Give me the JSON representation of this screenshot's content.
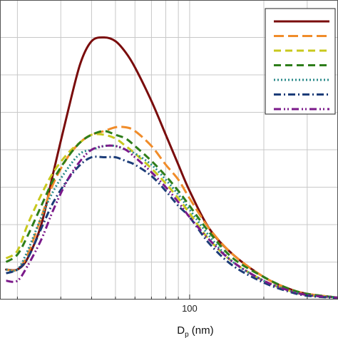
{
  "chart_data": {
    "type": "line",
    "xlabel": "D",
    "xlabel_subscript": "p",
    "xlabel_unit": " (nm)",
    "xscale": "log",
    "xlim": [
      17,
      400
    ],
    "ylim": [
      0,
      8
    ],
    "grid": true,
    "legend_position": "top-right",
    "x_tick_labels": [
      {
        "value": 100,
        "label": "100"
      }
    ],
    "series": [
      {
        "color": "#7a0c0c",
        "dash": "solid",
        "x": [
          18,
          20,
          22,
          25,
          28,
          32,
          36,
          40,
          45,
          50,
          55,
          60,
          70,
          80,
          90,
          100,
          120,
          150,
          200,
          250,
          300,
          400
        ],
        "y": [
          0.8,
          0.8,
          1.1,
          2.0,
          3.4,
          5.0,
          6.3,
          6.9,
          7.0,
          6.9,
          6.6,
          6.2,
          5.3,
          4.4,
          3.6,
          2.9,
          1.9,
          1.2,
          0.6,
          0.3,
          0.15,
          0.05
        ]
      },
      {
        "color": "#f08c2a",
        "dash": "long-dash",
        "x": [
          18,
          20,
          22,
          25,
          28,
          32,
          36,
          40,
          45,
          50,
          55,
          60,
          70,
          80,
          90,
          100,
          120,
          150,
          200,
          250,
          300,
          400
        ],
        "y": [
          0.8,
          0.8,
          1.2,
          2.2,
          3.1,
          3.8,
          4.2,
          4.4,
          4.5,
          4.6,
          4.6,
          4.5,
          4.1,
          3.6,
          3.2,
          2.7,
          1.9,
          1.2,
          0.6,
          0.3,
          0.15,
          0.05
        ]
      },
      {
        "color": "#c8c81e",
        "dash": "dash",
        "x": [
          18,
          20,
          22,
          25,
          28,
          32,
          36,
          40,
          45,
          50,
          55,
          60,
          70,
          80,
          90,
          100,
          120,
          150,
          200,
          250,
          300,
          400
        ],
        "y": [
          1.1,
          1.3,
          2.0,
          2.8,
          3.4,
          3.9,
          4.2,
          4.4,
          4.4,
          4.3,
          4.1,
          3.9,
          3.5,
          3.1,
          2.7,
          2.3,
          1.6,
          1.0,
          0.5,
          0.25,
          0.12,
          0.05
        ]
      },
      {
        "color": "#2e7d1a",
        "dash": "dash",
        "x": [
          18,
          20,
          22,
          25,
          28,
          32,
          36,
          40,
          45,
          50,
          55,
          60,
          70,
          80,
          90,
          100,
          120,
          150,
          200,
          250,
          300,
          400
        ],
        "y": [
          1.0,
          1.2,
          1.7,
          2.5,
          3.2,
          3.8,
          4.2,
          4.4,
          4.5,
          4.4,
          4.3,
          4.1,
          3.7,
          3.3,
          2.9,
          2.5,
          1.8,
          1.1,
          0.6,
          0.3,
          0.15,
          0.05
        ]
      },
      {
        "color": "#2a8a8a",
        "dash": "dot",
        "x": [
          18,
          20,
          22,
          25,
          28,
          32,
          36,
          40,
          45,
          50,
          55,
          60,
          70,
          80,
          90,
          100,
          120,
          150,
          200,
          250,
          300,
          400
        ],
        "y": [
          0.8,
          0.8,
          1.3,
          2.2,
          2.9,
          3.5,
          3.9,
          4.0,
          4.1,
          4.1,
          4.0,
          3.9,
          3.6,
          3.2,
          2.8,
          2.4,
          1.7,
          1.0,
          0.5,
          0.25,
          0.12,
          0.05
        ]
      },
      {
        "color": "#1c3c78",
        "dash": "dash-dot",
        "x": [
          18,
          20,
          22,
          25,
          28,
          32,
          36,
          40,
          45,
          50,
          55,
          60,
          70,
          80,
          90,
          100,
          120,
          150,
          200,
          250,
          300,
          400
        ],
        "y": [
          0.7,
          0.8,
          1.1,
          1.9,
          2.6,
          3.2,
          3.6,
          3.8,
          3.8,
          3.8,
          3.7,
          3.6,
          3.3,
          2.9,
          2.5,
          2.2,
          1.5,
          0.9,
          0.45,
          0.22,
          0.1,
          0.04
        ]
      },
      {
        "color": "#7b1a8a",
        "dash": "dash-dot-dot",
        "x": [
          18,
          20,
          22,
          25,
          28,
          32,
          36,
          40,
          45,
          50,
          55,
          60,
          70,
          80,
          90,
          100,
          120,
          150,
          200,
          250,
          300,
          400
        ],
        "y": [
          0.5,
          0.5,
          0.9,
          1.6,
          2.4,
          3.2,
          3.7,
          4.0,
          4.1,
          4.1,
          4.0,
          3.8,
          3.4,
          3.0,
          2.6,
          2.2,
          1.6,
          1.0,
          0.5,
          0.25,
          0.12,
          0.05
        ]
      }
    ]
  }
}
